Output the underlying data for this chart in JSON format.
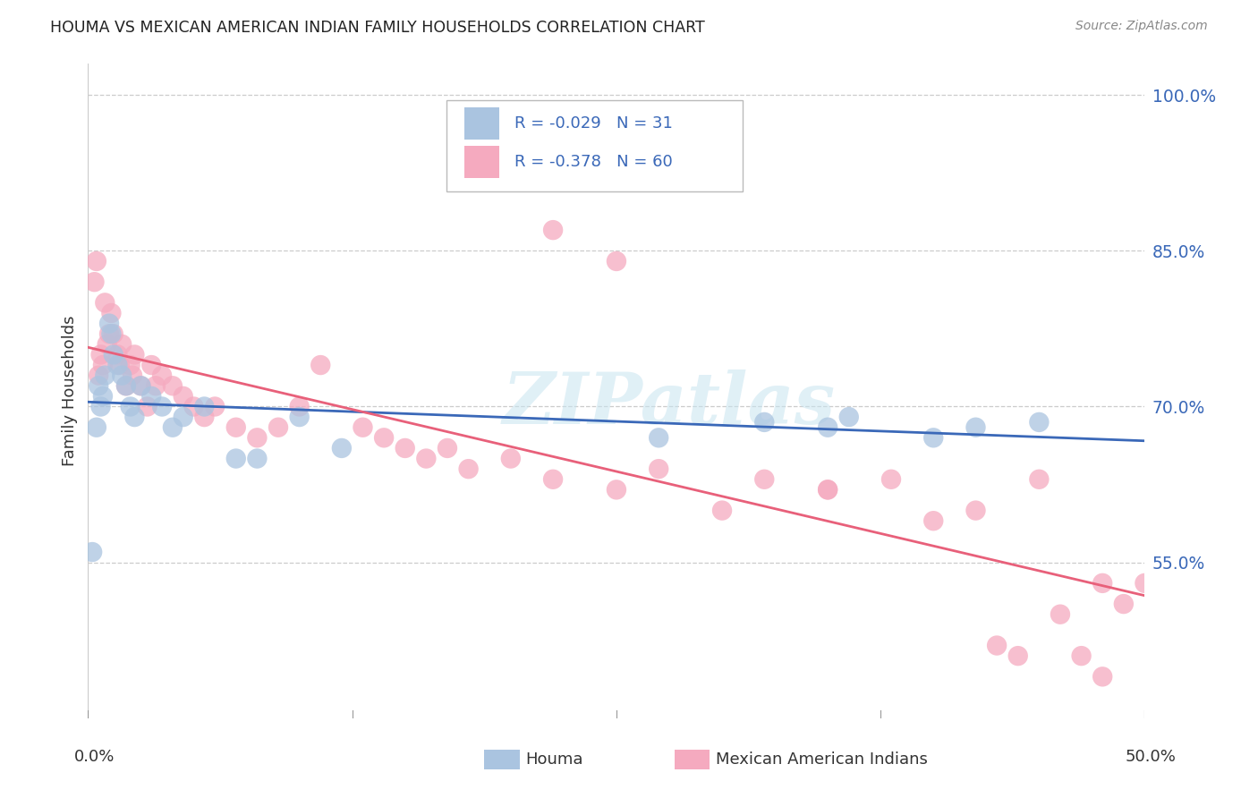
{
  "title": "HOUMA VS MEXICAN AMERICAN INDIAN FAMILY HOUSEHOLDS CORRELATION CHART",
  "source": "Source: ZipAtlas.com",
  "ylabel": "Family Households",
  "houma_R": "-0.029",
  "houma_N": "31",
  "mexican_R": "-0.378",
  "mexican_N": "60",
  "houma_color": "#aac4e0",
  "mexican_color": "#f5aabf",
  "houma_line_color": "#3a68b8",
  "mexican_line_color": "#e8607a",
  "legend_text_color": "#3a68b8",
  "background_color": "#ffffff",
  "houma_x": [
    0.2,
    0.4,
    0.5,
    0.6,
    0.7,
    0.8,
    1.0,
    1.1,
    1.2,
    1.4,
    1.6,
    1.8,
    2.0,
    2.2,
    2.5,
    3.0,
    3.5,
    4.0,
    4.5,
    5.5,
    7.0,
    8.0,
    10.0,
    12.0,
    27.0,
    32.0,
    35.0,
    36.0,
    40.0,
    42.0,
    45.0
  ],
  "houma_y": [
    56.0,
    68.0,
    72.0,
    70.0,
    71.0,
    73.0,
    78.0,
    77.0,
    75.0,
    74.0,
    73.0,
    72.0,
    70.0,
    69.0,
    72.0,
    71.0,
    70.0,
    68.0,
    69.0,
    70.0,
    65.0,
    65.0,
    69.0,
    66.0,
    67.0,
    68.5,
    68.0,
    69.0,
    67.0,
    68.0,
    68.5
  ],
  "mexican_x": [
    0.3,
    0.4,
    0.5,
    0.6,
    0.7,
    0.8,
    0.9,
    1.0,
    1.1,
    1.2,
    1.4,
    1.5,
    1.6,
    1.8,
    2.0,
    2.1,
    2.2,
    2.5,
    2.8,
    3.0,
    3.2,
    3.5,
    4.0,
    4.5,
    5.0,
    5.5,
    6.0,
    7.0,
    8.0,
    9.0,
    10.0,
    11.0,
    13.0,
    14.0,
    15.0,
    16.0,
    17.0,
    18.0,
    20.0,
    22.0,
    25.0,
    27.0,
    30.0,
    32.0,
    35.0,
    38.0,
    40.0,
    42.0,
    43.0,
    44.0,
    45.0,
    46.0,
    47.0,
    48.0,
    49.0,
    50.0,
    22.0,
    25.0,
    35.0,
    48.0
  ],
  "mexican_y": [
    82.0,
    84.0,
    73.0,
    75.0,
    74.0,
    80.0,
    76.0,
    77.0,
    79.0,
    77.0,
    75.0,
    74.0,
    76.0,
    72.0,
    74.0,
    73.0,
    75.0,
    72.0,
    70.0,
    74.0,
    72.0,
    73.0,
    72.0,
    71.0,
    70.0,
    69.0,
    70.0,
    68.0,
    67.0,
    68.0,
    70.0,
    74.0,
    68.0,
    67.0,
    66.0,
    65.0,
    66.0,
    64.0,
    65.0,
    63.0,
    62.0,
    64.0,
    60.0,
    63.0,
    62.0,
    63.0,
    59.0,
    60.0,
    47.0,
    46.0,
    63.0,
    50.0,
    46.0,
    44.0,
    51.0,
    53.0,
    87.0,
    84.0,
    62.0,
    53.0
  ],
  "xmin": 0.0,
  "xmax": 50.0,
  "ymin": 40.0,
  "ymax": 103.0,
  "yticks": [
    55.0,
    70.0,
    85.0,
    100.0
  ],
  "xtick_positions": [
    0,
    12.5,
    25.0,
    37.5,
    50.0
  ]
}
